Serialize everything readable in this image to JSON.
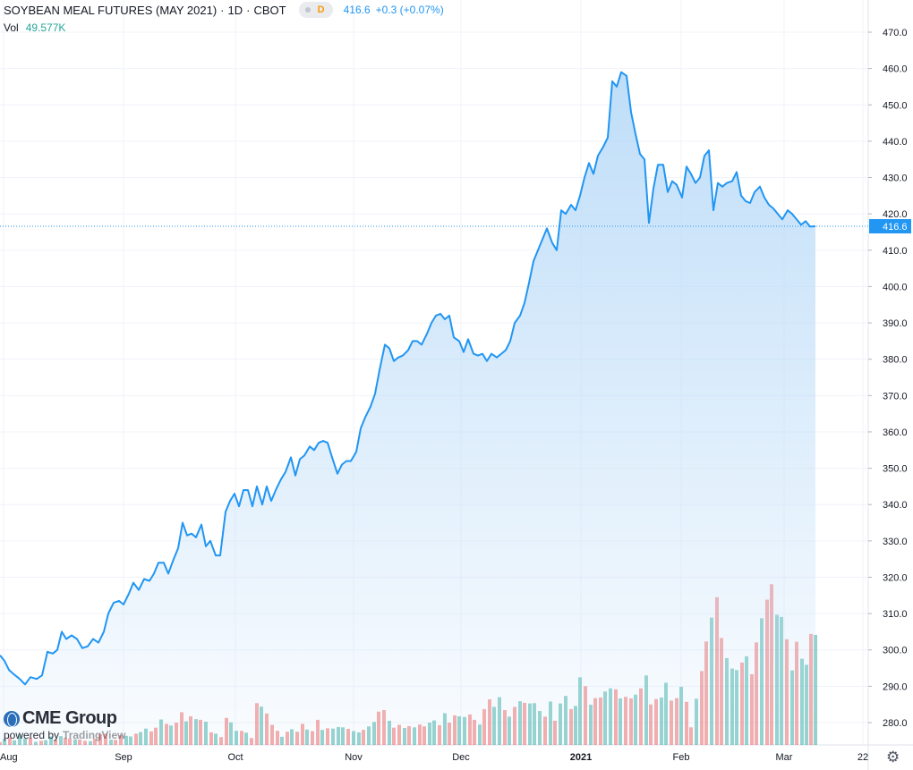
{
  "header": {
    "symbol": "SOYBEAN MEAL FUTURES (MAY 2021)",
    "interval": "1D",
    "exchange": "CBOT",
    "badge": "D",
    "last": "416.6",
    "change": "+0.3 (+0.07%)",
    "volume_label": "Vol",
    "volume": "49.577K"
  },
  "branding": {
    "logo": "CME Group",
    "powered_by": "powered by",
    "provider": "TradingView"
  },
  "colors": {
    "line": "#2196f3",
    "area_top": "#bcdcf8",
    "up_volume": "#26a69a",
    "down_volume": "#ef5350",
    "price_tag": "#2196f3",
    "grid": "#f0f3fa"
  },
  "chart_data": {
    "type": "area",
    "title": "SOYBEAN MEAL FUTURES (MAY 2021)",
    "x_labels": [
      "Aug",
      "Sep",
      "Oct",
      "Nov",
      "Dec",
      "2021",
      "Feb",
      "Mar",
      "22"
    ],
    "y_axis": {
      "side": "right",
      "ticks": [
        280.0,
        290.0,
        300.0,
        310.0,
        320.0,
        330.0,
        340.0,
        350.0,
        360.0,
        370.0,
        380.0,
        390.0,
        400.0,
        410.0,
        420.0,
        430.0,
        440.0,
        450.0,
        460.0,
        470.0
      ],
      "ylim": [
        275.0,
        472.0
      ]
    },
    "last_price": 416.6,
    "price_series": {
      "name": "Close",
      "values": [
        [
          0,
          298.5
        ],
        [
          5,
          297.0
        ],
        [
          10,
          294.5
        ],
        [
          17,
          293.0
        ],
        [
          22,
          292.0
        ],
        [
          28,
          290.5
        ],
        [
          34,
          292.5
        ],
        [
          41,
          292.0
        ],
        [
          47,
          293.0
        ],
        [
          53,
          299.5
        ],
        [
          59,
          299.0
        ],
        [
          64,
          300.0
        ],
        [
          69,
          305.0
        ],
        [
          74,
          303.0
        ],
        [
          80,
          304.0
        ],
        [
          86,
          303.0
        ],
        [
          92,
          300.5
        ],
        [
          98,
          301.0
        ],
        [
          104,
          303.0
        ],
        [
          110,
          302.0
        ],
        [
          116,
          305.0
        ],
        [
          121,
          310.0
        ],
        [
          127,
          313.0
        ],
        [
          133,
          313.5
        ],
        [
          138,
          312.5
        ],
        [
          144,
          315.5
        ],
        [
          149,
          318.5
        ],
        [
          155,
          316.5
        ],
        [
          161,
          319.5
        ],
        [
          167,
          319.0
        ],
        [
          172,
          321.0
        ],
        [
          177,
          324.0
        ],
        [
          183,
          324.0
        ],
        [
          188,
          321.0
        ],
        [
          194,
          325.0
        ],
        [
          199,
          328.0
        ],
        [
          204,
          335.0
        ],
        [
          209,
          331.5
        ],
        [
          214,
          332.0
        ],
        [
          219,
          331.0
        ],
        [
          225,
          334.5
        ],
        [
          230,
          328.5
        ],
        [
          235,
          330.0
        ],
        [
          241,
          326.0
        ],
        [
          246,
          326.0
        ],
        [
          252,
          338.0
        ],
        [
          257,
          341.0
        ],
        [
          262,
          343.0
        ],
        [
          267,
          339.5
        ],
        [
          272,
          344.0
        ],
        [
          277,
          344.0
        ],
        [
          282,
          339.5
        ],
        [
          287,
          345.0
        ],
        [
          293,
          340.0
        ],
        [
          298,
          345.0
        ],
        [
          303,
          341.0
        ],
        [
          309,
          344.5
        ],
        [
          314,
          347.0
        ],
        [
          319,
          349.0
        ],
        [
          325,
          353.0
        ],
        [
          330,
          348.0
        ],
        [
          335,
          352.5
        ],
        [
          340,
          353.5
        ],
        [
          346,
          356.0
        ],
        [
          351,
          355.0
        ],
        [
          356,
          357.0
        ],
        [
          361,
          357.5
        ],
        [
          366,
          357.0
        ],
        [
          371,
          353.0
        ],
        [
          377,
          348.5
        ],
        [
          382,
          351.0
        ],
        [
          387,
          352.0
        ],
        [
          392,
          352.0
        ],
        [
          398,
          354.5
        ],
        [
          403,
          361.0
        ],
        [
          408,
          364.0
        ],
        [
          414,
          367.0
        ],
        [
          419,
          370.5
        ],
        [
          424,
          377.0
        ],
        [
          430,
          384.0
        ],
        [
          435,
          383.0
        ],
        [
          440,
          379.5
        ],
        [
          445,
          380.5
        ],
        [
          450,
          381.0
        ],
        [
          456,
          382.5
        ],
        [
          461,
          385.0
        ],
        [
          466,
          385.0
        ],
        [
          471,
          384.0
        ],
        [
          477,
          387.0
        ],
        [
          482,
          390.0
        ],
        [
          487,
          392.0
        ],
        [
          492,
          392.5
        ],
        [
          497,
          391.0
        ],
        [
          502,
          392.0
        ],
        [
          507,
          386.0
        ],
        [
          513,
          385.0
        ],
        [
          518,
          382.0
        ],
        [
          523,
          385.5
        ],
        [
          529,
          381.5
        ],
        [
          534,
          381.0
        ],
        [
          539,
          381.5
        ],
        [
          544,
          379.5
        ],
        [
          549,
          381.5
        ],
        [
          555,
          380.5
        ],
        [
          560,
          381.5
        ],
        [
          565,
          382.5
        ],
        [
          570,
          385.0
        ],
        [
          575,
          390.0
        ],
        [
          581,
          392.0
        ],
        [
          586,
          395.5
        ],
        [
          591,
          401.0
        ],
        [
          596,
          407.0
        ],
        [
          601,
          410.0
        ],
        [
          606,
          413.0
        ],
        [
          611,
          416.0
        ],
        [
          617,
          412.0
        ],
        [
          622,
          410.0
        ],
        [
          627,
          421.0
        ],
        [
          632,
          420.0
        ],
        [
          638,
          422.5
        ],
        [
          643,
          421.0
        ],
        [
          648,
          425.0
        ],
        [
          653,
          430.0
        ],
        [
          658,
          434.0
        ],
        [
          663,
          431.0
        ],
        [
          668,
          436.0
        ],
        [
          674,
          438.5
        ],
        [
          679,
          441.0
        ],
        [
          684,
          456.5
        ],
        [
          689,
          455.0
        ],
        [
          694,
          459.0
        ],
        [
          700,
          458.0
        ],
        [
          705,
          448.0
        ],
        [
          710,
          442.0
        ],
        [
          715,
          436.5
        ],
        [
          720,
          435.0
        ],
        [
          725,
          417.5
        ],
        [
          730,
          427.0
        ],
        [
          735,
          433.5
        ],
        [
          741,
          433.5
        ],
        [
          746,
          426.0
        ],
        [
          751,
          429.0
        ],
        [
          756,
          428.0
        ],
        [
          762,
          424.5
        ],
        [
          767,
          433.0
        ],
        [
          772,
          431.0
        ],
        [
          777,
          428.5
        ],
        [
          782,
          430.0
        ],
        [
          787,
          436.0
        ],
        [
          792,
          437.5
        ],
        [
          797,
          421.0
        ],
        [
          802,
          428.5
        ],
        [
          807,
          427.5
        ],
        [
          812,
          428.5
        ],
        [
          818,
          429.0
        ],
        [
          823,
          431.5
        ],
        [
          828,
          425.0
        ],
        [
          833,
          423.5
        ],
        [
          838,
          423.0
        ],
        [
          843,
          426.0
        ],
        [
          849,
          427.5
        ],
        [
          854,
          424.5
        ],
        [
          859,
          422.5
        ],
        [
          864,
          421.5
        ],
        [
          869,
          420.0
        ],
        [
          874,
          418.5
        ],
        [
          880,
          421.0
        ],
        [
          885,
          420.0
        ],
        [
          890,
          418.5
        ],
        [
          895,
          417.0
        ],
        [
          900,
          418.0
        ],
        [
          905,
          416.5
        ],
        [
          911,
          416.6
        ]
      ]
    },
    "volume_series": {
      "up_indices": [
        1,
        3,
        4,
        5,
        7,
        9,
        10,
        12,
        15,
        18,
        22,
        25,
        26,
        28,
        29,
        32,
        34,
        37,
        39,
        41,
        43,
        46,
        47,
        49,
        52,
        56,
        58,
        61,
        64,
        66,
        67,
        68,
        70,
        71,
        73,
        74,
        77,
        80,
        82,
        85,
        86,
        88,
        91,
        92,
        95,
        98,
        99,
        101,
        103,
        105,
        106,
        107,
        109,
        111,
        112,
        114,
        115,
        117,
        120,
        121,
        123,
        126,
        128,
        131,
        132,
        135,
        138,
        141,
        144,
        145,
        146,
        148,
        151,
        154,
        155,
        157,
        159,
        160,
        162,
        164,
        165,
        168,
        170,
        172
      ],
      "bars": [
        [
          0,
          0.9
        ],
        [
          5,
          1.9
        ],
        [
          11,
          2.4
        ],
        [
          16,
          1.5
        ],
        [
          22,
          3.3
        ],
        [
          28,
          2.1
        ],
        [
          34,
          2.3
        ],
        [
          40,
          1.0
        ],
        [
          46,
          1.3
        ],
        [
          51,
          1.5
        ],
        [
          57,
          2.7
        ],
        [
          62,
          1.7
        ],
        [
          68,
          2.8
        ],
        [
          73,
          2.3
        ],
        [
          78,
          2.0
        ],
        [
          84,
          1.8
        ],
        [
          89,
          1.7
        ],
        [
          95,
          1.3
        ],
        [
          101,
          1.2
        ],
        [
          106,
          2.0
        ],
        [
          112,
          3.4
        ],
        [
          118,
          3.6
        ],
        [
          124,
          1.7
        ],
        [
          129,
          1.6
        ],
        [
          135,
          3.1
        ],
        [
          141,
          2.9
        ],
        [
          146,
          2.7
        ],
        [
          152,
          3.6
        ],
        [
          157,
          4.1
        ],
        [
          163,
          5.2
        ],
        [
          169,
          4.3
        ],
        [
          174,
          5.5
        ],
        [
          180,
          8.1
        ],
        [
          186,
          6.7
        ],
        [
          191,
          6.2
        ],
        [
          197,
          7.1
        ],
        [
          203,
          10.4
        ],
        [
          208,
          7.5
        ],
        [
          213,
          9.1
        ],
        [
          219,
          8.2
        ],
        [
          224,
          8.0
        ],
        [
          230,
          7.4
        ],
        [
          236,
          4.0
        ],
        [
          241,
          3.6
        ],
        [
          247,
          2.5
        ],
        [
          253,
          8.6
        ],
        [
          258,
          7.2
        ],
        [
          264,
          4.5
        ],
        [
          270,
          4.5
        ],
        [
          275,
          3.9
        ],
        [
          281,
          2.2
        ],
        [
          287,
          13.3
        ],
        [
          292,
          12.2
        ],
        [
          298,
          10.0
        ],
        [
          304,
          6.4
        ],
        [
          310,
          4.5
        ],
        [
          315,
          2.6
        ],
        [
          321,
          4.2
        ],
        [
          326,
          5.0
        ],
        [
          332,
          4.2
        ],
        [
          338,
          6.7
        ],
        [
          343,
          4.9
        ],
        [
          349,
          4.4
        ],
        [
          355,
          8.0
        ],
        [
          360,
          4.8
        ],
        [
          366,
          5.3
        ],
        [
          372,
          5.2
        ],
        [
          378,
          5.7
        ],
        [
          383,
          5.6
        ],
        [
          389,
          5.1
        ],
        [
          395,
          4.4
        ],
        [
          401,
          4.0
        ],
        [
          406,
          4.8
        ],
        [
          412,
          5.9
        ],
        [
          418,
          7.3
        ],
        [
          423,
          10.6
        ],
        [
          429,
          11.1
        ],
        [
          435,
          7.7
        ],
        [
          440,
          5.5
        ],
        [
          446,
          6.4
        ],
        [
          452,
          5.4
        ],
        [
          457,
          6.0
        ],
        [
          463,
          5.6
        ],
        [
          469,
          6.5
        ],
        [
          474,
          5.9
        ],
        [
          480,
          7.1
        ],
        [
          485,
          7.8
        ],
        [
          491,
          6.3
        ],
        [
          497,
          10.1
        ],
        [
          502,
          7.1
        ],
        [
          508,
          9.4
        ],
        [
          513,
          9.1
        ],
        [
          519,
          8.9
        ],
        [
          525,
          9.7
        ],
        [
          530,
          8.0
        ],
        [
          536,
          6.5
        ],
        [
          541,
          11.4
        ],
        [
          547,
          14.5
        ],
        [
          552,
          12.1
        ],
        [
          558,
          15.2
        ],
        [
          564,
          11.1
        ],
        [
          569,
          9.0
        ],
        [
          575,
          12.1
        ],
        [
          581,
          13.9
        ],
        [
          586,
          13.4
        ],
        [
          592,
          13.2
        ],
        [
          597,
          13.3
        ],
        [
          603,
          10.8
        ],
        [
          609,
          9.0
        ],
        [
          615,
          13.8
        ],
        [
          620,
          7.7
        ],
        [
          626,
          13.2
        ],
        [
          632,
          15.6
        ],
        [
          638,
          11.4
        ],
        [
          643,
          12.4
        ],
        [
          648,
          21.5
        ],
        [
          654,
          18.7
        ],
        [
          660,
          12.8
        ],
        [
          665,
          14.9
        ],
        [
          671,
          15.1
        ],
        [
          676,
          17.0
        ],
        [
          682,
          18.0
        ],
        [
          688,
          17.7
        ],
        [
          693,
          14.8
        ],
        [
          699,
          15.3
        ],
        [
          705,
          14.8
        ],
        [
          710,
          16.0
        ],
        [
          716,
          18.0
        ],
        [
          722,
          22.1
        ],
        [
          727,
          12.9
        ],
        [
          733,
          14.6
        ],
        [
          739,
          15.1
        ],
        [
          744,
          19.8
        ],
        [
          750,
          14.1
        ],
        [
          756,
          14.9
        ],
        [
          761,
          18.5
        ],
        [
          767,
          13.7
        ],
        [
          772,
          5.6
        ],
        [
          778,
          14.7
        ],
        [
          784,
          23.5
        ],
        [
          789,
          32.9
        ],
        [
          795,
          40.5
        ],
        [
          801,
          47.0
        ],
        [
          806,
          34.0
        ],
        [
          812,
          27.6
        ],
        [
          818,
          24.3
        ],
        [
          823,
          23.8
        ],
        [
          829,
          26.2
        ],
        [
          834,
          28.2
        ],
        [
          840,
          22.5
        ],
        [
          845,
          32.6
        ],
        [
          851,
          40.3
        ],
        [
          857,
          46.2
        ],
        [
          862,
          51.1
        ],
        [
          868,
          41.4
        ],
        [
          873,
          40.7
        ],
        [
          879,
          33.6
        ],
        [
          885,
          23.7
        ],
        [
          890,
          32.8
        ],
        [
          896,
          27.4
        ],
        [
          901,
          25.5
        ],
        [
          906,
          35.3
        ],
        [
          911,
          35.0
        ]
      ],
      "max_visible": 60.0
    }
  }
}
